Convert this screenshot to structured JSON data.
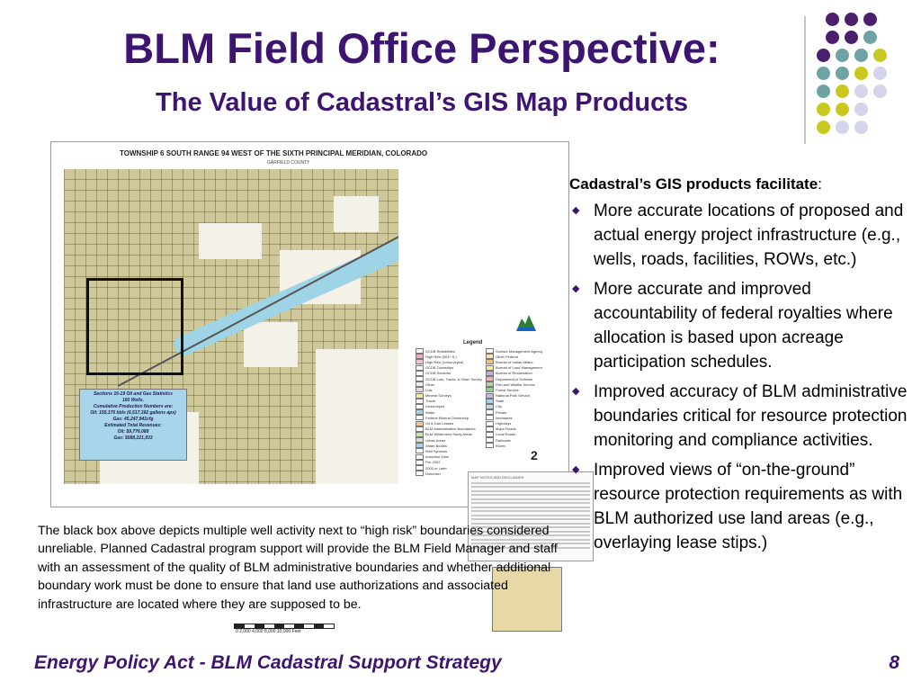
{
  "slide": {
    "title": "BLM Field Office Perspective:",
    "subtitle": "The Value of Cadastral’s GIS Map Products",
    "dots": {
      "colors": {
        "purple": "#4a1f6b",
        "teal": "#6fa3a3",
        "yellow": "#c8c81e",
        "lavender": "#d4d4ea"
      }
    },
    "map": {
      "header": "TOWNSHIP 6 SOUTH RANGE 94 WEST OF THE SIXTH PRINCIPAL MERIDIAN, COLORADO",
      "sub": "GARFIELD COUNTY",
      "legend_title": "Legend",
      "legend_left": [
        {
          "label": "GCDB Reliabilities",
          "color": "#ffffff"
        },
        {
          "label": "High Rels (501+ ft.)",
          "color": "#f2a9c2"
        },
        {
          "label": "High Rels (Unsurveyed)",
          "color": "#f6c1d4"
        },
        {
          "label": "GCDB Townships",
          "color": "#ffffff"
        },
        {
          "label": "GCDB Sections",
          "color": "#ffffff"
        },
        {
          "label": "GCDB Lots, Tracts, & Other Surveys",
          "color": "#ffffff"
        },
        {
          "label": "Other",
          "color": "#eeeeee"
        },
        {
          "label": "Lots",
          "color": "#dddddd"
        },
        {
          "label": "Mineral Surveys",
          "color": "#f3e7a0"
        },
        {
          "label": "Tracts",
          "color": "#ffffff"
        },
        {
          "label": "Unsurveyed",
          "color": "#ffffff"
        },
        {
          "label": "Water",
          "color": "#9fd4e6"
        },
        {
          "label": "Federal Mineral Ownership",
          "color": "#ffffff"
        },
        {
          "label": "Oil & Gas Leases",
          "color": "#f4c48f"
        },
        {
          "label": "BLM Administrative Boundaries",
          "color": "#ffffff"
        },
        {
          "label": "BLM Wilderness Study Areas",
          "color": "#c7e4b0"
        },
        {
          "label": "Urban Areas",
          "color": "#dddddd"
        },
        {
          "label": "Water Bodies",
          "color": "#9fd4e6"
        },
        {
          "label": "Well Symbols",
          "color": "#ffffff"
        },
        {
          "label": "Inception Date",
          "color": "#ffffff"
        },
        {
          "label": "Pre-2003",
          "color": "#ffffff"
        },
        {
          "label": "2003 or Later",
          "color": "#ffffff"
        },
        {
          "label": "Unknown",
          "color": "#ffffff"
        }
      ],
      "legend_right": [
        {
          "label": "Surface Management Agency",
          "color": "#ffffff"
        },
        {
          "label": "Other Federal",
          "color": "#f6e4b2"
        },
        {
          "label": "Bureau of Indian Affairs",
          "color": "#f2c27a"
        },
        {
          "label": "Bureau of Land Management",
          "color": "#f3ec9a"
        },
        {
          "label": "Bureau of Reclamation",
          "color": "#c9a7e0"
        },
        {
          "label": "Department of Defense",
          "color": "#f4b3b3"
        },
        {
          "label": "Fish and Wildlife Service",
          "color": "#a8d8a0"
        },
        {
          "label": "Forest Service",
          "color": "#8fcf8f"
        },
        {
          "label": "National Park Service",
          "color": "#c7b6e0"
        },
        {
          "label": "State",
          "color": "#a9cff0"
        },
        {
          "label": "City",
          "color": "#bcdce8"
        },
        {
          "label": "Private",
          "color": "#ffffff"
        },
        {
          "label": "Interstates",
          "color": "#ffffff"
        },
        {
          "label": "Highways",
          "color": "#ffffff"
        },
        {
          "label": "Major Roads",
          "color": "#ffffff"
        },
        {
          "label": "Local Roads",
          "color": "#ffffff"
        },
        {
          "label": "Railroads",
          "color": "#ffffff"
        },
        {
          "label": "Rivers",
          "color": "#ffffff"
        }
      ],
      "north_label": "2",
      "notes_title": "MAP NOTES AND DISCLAIMER",
      "stats": {
        "title": "Sections 16-19 Oil and Gas Statistics",
        "wells": "160 Wells.",
        "cumulative_label": "Cumulative Production Numbers are:",
        "oil": "Oil:      155,176 bbls  (6,517,392 gallons apx)",
        "gas": "Gas:     45,247,941cfg",
        "revenue_label": "Estimated Total Revenues:",
        "oil_rev": "Oil:      $9,776,088",
        "gas_rev": "Gas:     $588,221,933"
      },
      "scale_labels": "0      2,000      4,000      8,000      10,000      Feet"
    },
    "caption": "The black box above depicts multiple well activity next to “high risk” boundaries considered unreliable.  Planned Cadastral program support will provide the BLM Field Manager and staff with an assessment of the quality of BLM administrative boundaries and whether additional boundary work must be done to ensure that land use authorizations and associated infrastructure are located where they are supposed to be.",
    "facilitate_bold": "Cadastral’s GIS products facilitate",
    "facilitate_colon": ":",
    "points": [
      "More accurate locations of proposed and actual energy project infrastructure (e.g., wells, roads, facilities, ROWs, etc.)",
      "More accurate and improved accountability of federal royalties where allocation is based upon acreage participation schedules.",
      "Improved accuracy of BLM administrative boundaries critical for resource protection monitoring and compliance activities.",
      "Improved views of “on-the-ground” resource protection requirements as with BLM authorized use land areas (e.g., overlaying lease stips.)"
    ],
    "footer": "Energy Policy Act - BLM Cadastral Support Strategy",
    "page_number": "8"
  }
}
